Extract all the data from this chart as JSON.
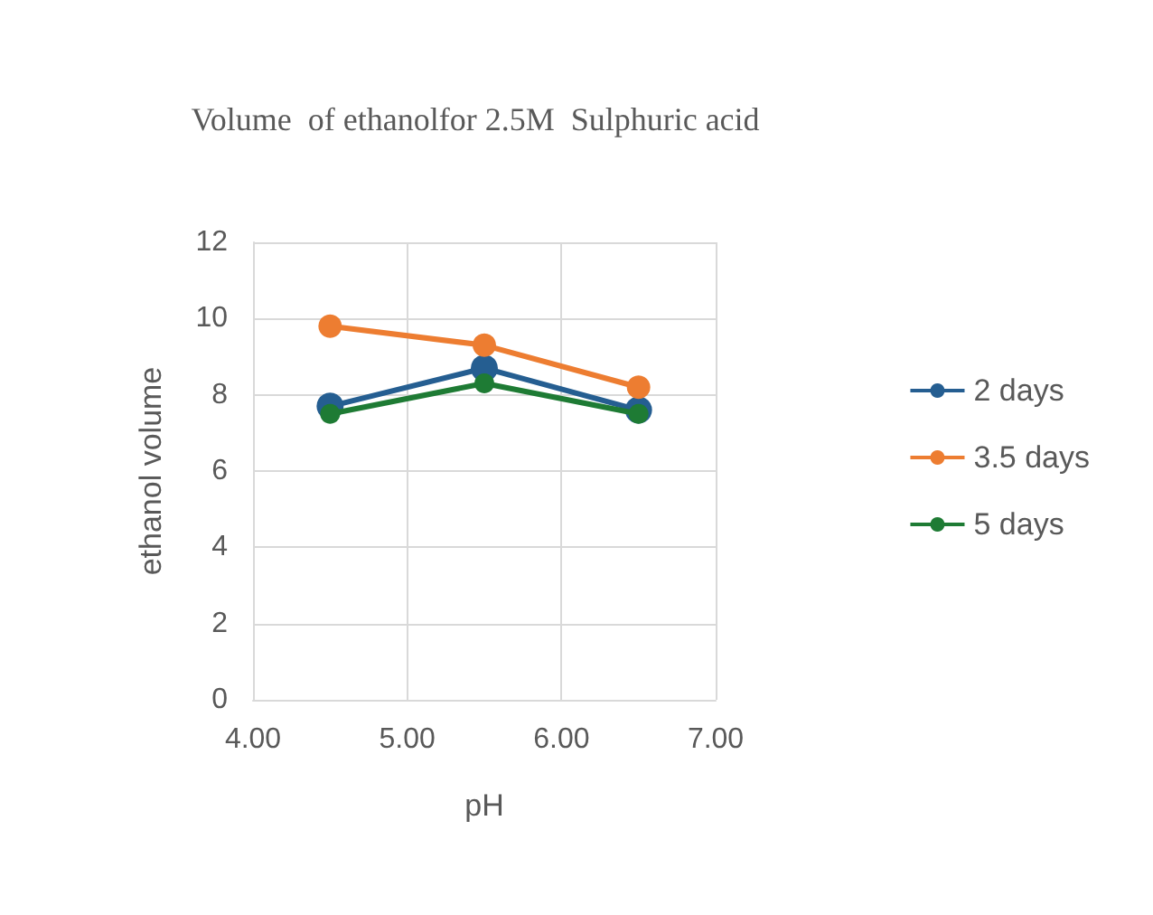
{
  "chart_data": {
    "type": "line",
    "title": "Volume  of ethanolfor 2.5M  Sulphuric acid",
    "xlabel": "pH",
    "ylabel": "ethanol volume",
    "x": [
      4.5,
      5.5,
      6.5
    ],
    "series": [
      {
        "name": "2 days",
        "color": "#255e91",
        "values": [
          7.7,
          8.7,
          7.6
        ]
      },
      {
        "name": "3.5 days",
        "color": "#ed7d31",
        "values": [
          9.8,
          9.3,
          8.2
        ]
      },
      {
        "name": "5 days",
        "color": "#1e7b34",
        "values": [
          7.5,
          8.3,
          7.5
        ]
      }
    ],
    "xlim": [
      4,
      7
    ],
    "xticks": [
      {
        "value": 4,
        "label": "4.00"
      },
      {
        "value": 5,
        "label": "5.00"
      },
      {
        "value": 6,
        "label": "6.00"
      },
      {
        "value": 7,
        "label": "7.00"
      }
    ],
    "ylim": [
      0,
      12
    ],
    "yticks": [
      0,
      2,
      4,
      6,
      8,
      10,
      12
    ],
    "grid": true,
    "legend": "right",
    "marker": "circle",
    "line_style": "solid"
  }
}
